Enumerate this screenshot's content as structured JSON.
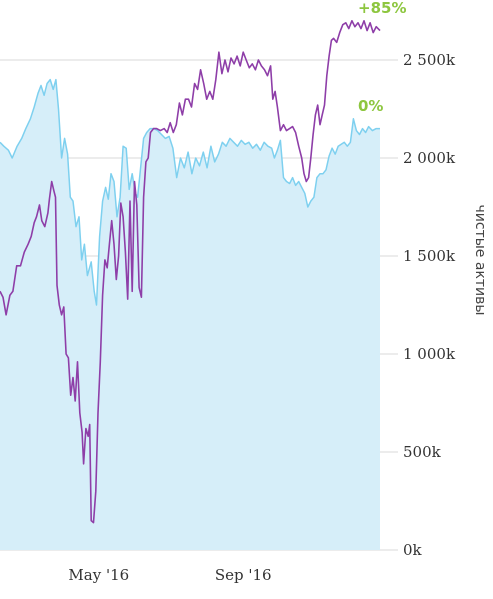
{
  "chart_data": {
    "type": "line",
    "ylabel": "чистые активы",
    "ylim": [
      0,
      2750000
    ],
    "y_ticks": [
      {
        "value": 0,
        "label": "0k"
      },
      {
        "value": 500000,
        "label": "500k"
      },
      {
        "value": 1000000,
        "label": "1 000k"
      },
      {
        "value": 1500000,
        "label": "1 500k"
      },
      {
        "value": 2000000,
        "label": "2 000k"
      },
      {
        "value": 2500000,
        "label": "2 500k"
      }
    ],
    "x_ticks": [
      {
        "t": 0.26,
        "label": "May '16"
      },
      {
        "t": 0.64,
        "label": "Sep '16"
      }
    ],
    "grid": true,
    "colors": {
      "area_fill": "#d6eef9",
      "area_line": "#7ed0ef",
      "line": "#8e3ea8",
      "pct": "#8dc63f",
      "grid": "#d9d9d9"
    },
    "series": [
      {
        "kind": "area",
        "end_label": "0%",
        "points": [
          [
            0.0,
            2080000
          ],
          [
            0.01,
            2060000
          ],
          [
            0.022,
            2040000
          ],
          [
            0.032,
            2000000
          ],
          [
            0.045,
            2060000
          ],
          [
            0.057,
            2100000
          ],
          [
            0.068,
            2150000
          ],
          [
            0.08,
            2200000
          ],
          [
            0.09,
            2260000
          ],
          [
            0.1,
            2330000
          ],
          [
            0.108,
            2370000
          ],
          [
            0.116,
            2320000
          ],
          [
            0.124,
            2380000
          ],
          [
            0.132,
            2400000
          ],
          [
            0.14,
            2350000
          ],
          [
            0.147,
            2400000
          ],
          [
            0.154,
            2250000
          ],
          [
            0.162,
            2000000
          ],
          [
            0.17,
            2100000
          ],
          [
            0.178,
            2020000
          ],
          [
            0.185,
            1800000
          ],
          [
            0.192,
            1780000
          ],
          [
            0.2,
            1650000
          ],
          [
            0.208,
            1700000
          ],
          [
            0.215,
            1480000
          ],
          [
            0.222,
            1560000
          ],
          [
            0.23,
            1400000
          ],
          [
            0.24,
            1470000
          ],
          [
            0.248,
            1320000
          ],
          [
            0.254,
            1250000
          ],
          [
            0.262,
            1600000
          ],
          [
            0.27,
            1780000
          ],
          [
            0.278,
            1850000
          ],
          [
            0.285,
            1790000
          ],
          [
            0.292,
            1920000
          ],
          [
            0.3,
            1880000
          ],
          [
            0.308,
            1700000
          ],
          [
            0.316,
            1800000
          ],
          [
            0.324,
            2060000
          ],
          [
            0.332,
            2050000
          ],
          [
            0.34,
            1840000
          ],
          [
            0.348,
            1920000
          ],
          [
            0.356,
            1820000
          ],
          [
            0.362,
            1800000
          ],
          [
            0.37,
            1950000
          ],
          [
            0.378,
            2100000
          ],
          [
            0.386,
            2130000
          ],
          [
            0.395,
            2150000
          ],
          [
            0.405,
            2150000
          ],
          [
            0.415,
            2140000
          ],
          [
            0.425,
            2120000
          ],
          [
            0.435,
            2100000
          ],
          [
            0.445,
            2110000
          ],
          [
            0.455,
            2050000
          ],
          [
            0.465,
            1900000
          ],
          [
            0.475,
            2000000
          ],
          [
            0.485,
            1950000
          ],
          [
            0.495,
            2030000
          ],
          [
            0.505,
            1920000
          ],
          [
            0.515,
            2000000
          ],
          [
            0.525,
            1960000
          ],
          [
            0.535,
            2030000
          ],
          [
            0.545,
            1950000
          ],
          [
            0.555,
            2060000
          ],
          [
            0.565,
            1980000
          ],
          [
            0.575,
            2020000
          ],
          [
            0.585,
            2080000
          ],
          [
            0.595,
            2060000
          ],
          [
            0.605,
            2100000
          ],
          [
            0.615,
            2080000
          ],
          [
            0.625,
            2060000
          ],
          [
            0.635,
            2090000
          ],
          [
            0.645,
            2070000
          ],
          [
            0.655,
            2080000
          ],
          [
            0.665,
            2050000
          ],
          [
            0.675,
            2070000
          ],
          [
            0.685,
            2040000
          ],
          [
            0.695,
            2080000
          ],
          [
            0.705,
            2060000
          ],
          [
            0.715,
            2050000
          ],
          [
            0.722,
            2000000
          ],
          [
            0.73,
            2040000
          ],
          [
            0.738,
            2090000
          ],
          [
            0.746,
            1900000
          ],
          [
            0.754,
            1880000
          ],
          [
            0.762,
            1870000
          ],
          [
            0.77,
            1900000
          ],
          [
            0.778,
            1860000
          ],
          [
            0.786,
            1880000
          ],
          [
            0.794,
            1850000
          ],
          [
            0.802,
            1820000
          ],
          [
            0.81,
            1750000
          ],
          [
            0.818,
            1780000
          ],
          [
            0.826,
            1800000
          ],
          [
            0.834,
            1900000
          ],
          [
            0.842,
            1920000
          ],
          [
            0.85,
            1920000
          ],
          [
            0.858,
            1940000
          ],
          [
            0.866,
            2010000
          ],
          [
            0.874,
            2050000
          ],
          [
            0.882,
            2020000
          ],
          [
            0.89,
            2060000
          ],
          [
            0.898,
            2070000
          ],
          [
            0.906,
            2080000
          ],
          [
            0.914,
            2060000
          ],
          [
            0.922,
            2080000
          ],
          [
            0.93,
            2200000
          ],
          [
            0.938,
            2140000
          ],
          [
            0.946,
            2120000
          ],
          [
            0.954,
            2150000
          ],
          [
            0.962,
            2130000
          ],
          [
            0.97,
            2160000
          ],
          [
            0.98,
            2140000
          ],
          [
            0.99,
            2150000
          ],
          [
            1.0,
            2150000
          ]
        ]
      },
      {
        "kind": "line",
        "end_label": "+85%",
        "points": [
          [
            0.0,
            1320000
          ],
          [
            0.008,
            1290000
          ],
          [
            0.016,
            1200000
          ],
          [
            0.026,
            1300000
          ],
          [
            0.034,
            1320000
          ],
          [
            0.044,
            1450000
          ],
          [
            0.054,
            1450000
          ],
          [
            0.064,
            1520000
          ],
          [
            0.074,
            1560000
          ],
          [
            0.082,
            1600000
          ],
          [
            0.09,
            1670000
          ],
          [
            0.096,
            1700000
          ],
          [
            0.104,
            1760000
          ],
          [
            0.11,
            1680000
          ],
          [
            0.118,
            1650000
          ],
          [
            0.126,
            1720000
          ],
          [
            0.13,
            1790000
          ],
          [
            0.136,
            1880000
          ],
          [
            0.142,
            1830000
          ],
          [
            0.146,
            1800000
          ],
          [
            0.15,
            1350000
          ],
          [
            0.156,
            1250000
          ],
          [
            0.162,
            1200000
          ],
          [
            0.168,
            1240000
          ],
          [
            0.174,
            1000000
          ],
          [
            0.18,
            980000
          ],
          [
            0.186,
            790000
          ],
          [
            0.192,
            880000
          ],
          [
            0.198,
            760000
          ],
          [
            0.204,
            960000
          ],
          [
            0.21,
            700000
          ],
          [
            0.216,
            600000
          ],
          [
            0.22,
            440000
          ],
          [
            0.226,
            620000
          ],
          [
            0.232,
            580000
          ],
          [
            0.236,
            640000
          ],
          [
            0.24,
            150000
          ],
          [
            0.246,
            140000
          ],
          [
            0.252,
            300000
          ],
          [
            0.258,
            700000
          ],
          [
            0.264,
            960000
          ],
          [
            0.27,
            1300000
          ],
          [
            0.276,
            1480000
          ],
          [
            0.282,
            1440000
          ],
          [
            0.288,
            1560000
          ],
          [
            0.294,
            1680000
          ],
          [
            0.3,
            1560000
          ],
          [
            0.306,
            1380000
          ],
          [
            0.312,
            1500000
          ],
          [
            0.318,
            1770000
          ],
          [
            0.324,
            1700000
          ],
          [
            0.33,
            1520000
          ],
          [
            0.336,
            1280000
          ],
          [
            0.342,
            1780000
          ],
          [
            0.348,
            1320000
          ],
          [
            0.354,
            1880000
          ],
          [
            0.36,
            1760000
          ],
          [
            0.366,
            1340000
          ],
          [
            0.372,
            1290000
          ],
          [
            0.378,
            1800000
          ],
          [
            0.384,
            1980000
          ],
          [
            0.39,
            2000000
          ],
          [
            0.396,
            2130000
          ],
          [
            0.404,
            2150000
          ],
          [
            0.412,
            2150000
          ],
          [
            0.422,
            2140000
          ],
          [
            0.432,
            2150000
          ],
          [
            0.44,
            2130000
          ],
          [
            0.448,
            2180000
          ],
          [
            0.456,
            2130000
          ],
          [
            0.464,
            2170000
          ],
          [
            0.472,
            2280000
          ],
          [
            0.48,
            2220000
          ],
          [
            0.488,
            2300000
          ],
          [
            0.496,
            2300000
          ],
          [
            0.504,
            2260000
          ],
          [
            0.512,
            2380000
          ],
          [
            0.52,
            2350000
          ],
          [
            0.528,
            2450000
          ],
          [
            0.536,
            2380000
          ],
          [
            0.544,
            2300000
          ],
          [
            0.552,
            2340000
          ],
          [
            0.56,
            2300000
          ],
          [
            0.568,
            2400000
          ],
          [
            0.576,
            2540000
          ],
          [
            0.584,
            2430000
          ],
          [
            0.592,
            2500000
          ],
          [
            0.6,
            2440000
          ],
          [
            0.608,
            2510000
          ],
          [
            0.616,
            2480000
          ],
          [
            0.624,
            2520000
          ],
          [
            0.632,
            2470000
          ],
          [
            0.64,
            2540000
          ],
          [
            0.648,
            2500000
          ],
          [
            0.656,
            2460000
          ],
          [
            0.664,
            2480000
          ],
          [
            0.672,
            2450000
          ],
          [
            0.68,
            2500000
          ],
          [
            0.688,
            2470000
          ],
          [
            0.696,
            2450000
          ],
          [
            0.704,
            2420000
          ],
          [
            0.712,
            2470000
          ],
          [
            0.718,
            2300000
          ],
          [
            0.724,
            2340000
          ],
          [
            0.73,
            2260000
          ],
          [
            0.738,
            2140000
          ],
          [
            0.746,
            2170000
          ],
          [
            0.754,
            2140000
          ],
          [
            0.762,
            2150000
          ],
          [
            0.77,
            2160000
          ],
          [
            0.778,
            2130000
          ],
          [
            0.786,
            2060000
          ],
          [
            0.794,
            2000000
          ],
          [
            0.8,
            1920000
          ],
          [
            0.806,
            1880000
          ],
          [
            0.812,
            1900000
          ],
          [
            0.818,
            2000000
          ],
          [
            0.824,
            2120000
          ],
          [
            0.83,
            2220000
          ],
          [
            0.836,
            2270000
          ],
          [
            0.842,
            2170000
          ],
          [
            0.848,
            2220000
          ],
          [
            0.854,
            2270000
          ],
          [
            0.86,
            2420000
          ],
          [
            0.866,
            2520000
          ],
          [
            0.872,
            2600000
          ],
          [
            0.878,
            2610000
          ],
          [
            0.886,
            2590000
          ],
          [
            0.894,
            2640000
          ],
          [
            0.902,
            2680000
          ],
          [
            0.91,
            2690000
          ],
          [
            0.918,
            2660000
          ],
          [
            0.926,
            2700000
          ],
          [
            0.934,
            2670000
          ],
          [
            0.942,
            2690000
          ],
          [
            0.95,
            2660000
          ],
          [
            0.958,
            2700000
          ],
          [
            0.966,
            2650000
          ],
          [
            0.974,
            2690000
          ],
          [
            0.982,
            2640000
          ],
          [
            0.99,
            2670000
          ],
          [
            1.0,
            2650000
          ]
        ]
      }
    ]
  }
}
